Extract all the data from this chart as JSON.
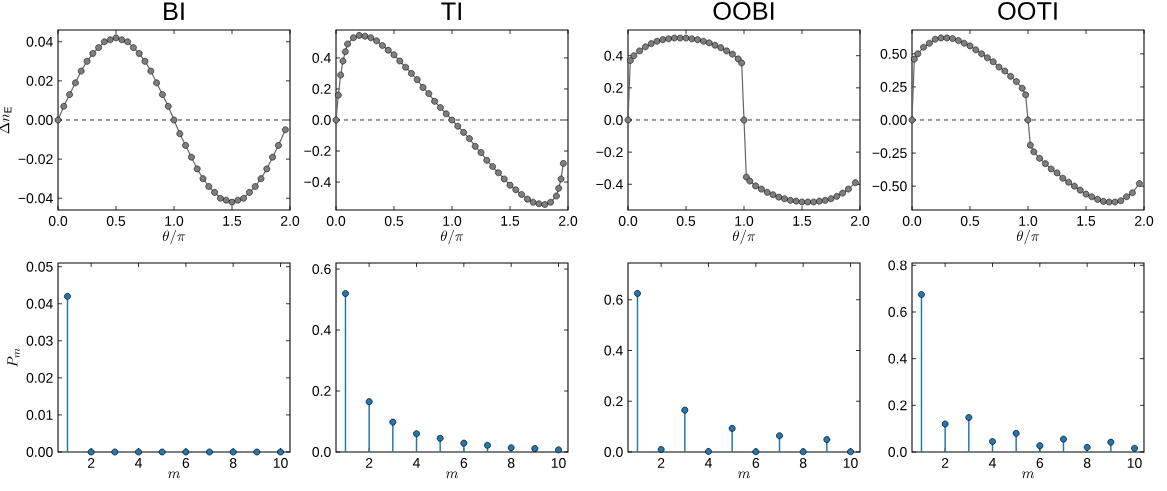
{
  "chart_data": [
    {
      "type": "line",
      "title": "BI",
      "xlabel": "\\theta/\\pi",
      "ylabel": "\\Delta n_\\mathrm{E}",
      "marker": "circle",
      "line_style": "solid",
      "x": [
        0,
        0.05,
        0.1,
        0.15,
        0.2,
        0.25,
        0.3,
        0.35,
        0.4,
        0.45,
        0.5,
        0.55,
        0.6,
        0.65,
        0.7,
        0.75,
        0.8,
        0.85,
        0.9,
        0.95,
        1.0,
        1.05,
        1.1,
        1.15,
        1.2,
        1.25,
        1.3,
        1.35,
        1.4,
        1.45,
        1.5,
        1.55,
        1.6,
        1.65,
        1.7,
        1.75,
        1.8,
        1.85,
        1.9,
        1.96
      ],
      "series": [
        {
          "color": "#666666",
          "values": [
            0,
            0.007,
            0.013,
            0.019,
            0.025,
            0.03,
            0.034,
            0.037,
            0.04,
            0.041,
            0.042,
            0.041,
            0.04,
            0.037,
            0.034,
            0.03,
            0.025,
            0.019,
            0.013,
            0.007,
            0,
            -0.007,
            -0.013,
            -0.019,
            -0.025,
            -0.03,
            -0.034,
            -0.037,
            -0.04,
            -0.041,
            -0.042,
            -0.041,
            -0.04,
            -0.037,
            -0.034,
            -0.03,
            -0.025,
            -0.019,
            -0.013,
            -0.005
          ]
        }
      ],
      "xlim": [
        0,
        2
      ],
      "xticks": [
        {
          "value": 0,
          "label": "0.0"
        },
        0.5,
        {
          "value": 1,
          "label": "1.0"
        },
        1.5,
        {
          "value": 2,
          "label": "2.0"
        }
      ],
      "ylim": [
        -0.046,
        0.046
      ],
      "yticks": [
        {
          "value": -0.04,
          "label": "−0.04"
        },
        {
          "value": -0.02,
          "label": "−0.02"
        },
        {
          "value": 0,
          "label": "0.00"
        },
        {
          "value": 0.02,
          "label": "0.02"
        },
        {
          "value": 0.04,
          "label": "0.04"
        }
      ],
      "ref_lines": [
        {
          "axis": "y",
          "value": 0,
          "color": "#000000",
          "line_style": "dashed"
        }
      ]
    },
    {
      "type": "line",
      "title": "TI",
      "xlabel": "\\theta/\\pi",
      "marker": "circle",
      "line_style": "solid",
      "x": [
        0,
        0.02,
        0.04,
        0.06,
        0.08,
        0.1,
        0.15,
        0.2,
        0.25,
        0.3,
        0.35,
        0.4,
        0.45,
        0.5,
        0.55,
        0.6,
        0.65,
        0.7,
        0.75,
        0.8,
        0.85,
        0.9,
        0.95,
        1.0,
        1.05,
        1.1,
        1.15,
        1.2,
        1.25,
        1.3,
        1.35,
        1.4,
        1.45,
        1.5,
        1.55,
        1.6,
        1.65,
        1.7,
        1.75,
        1.8,
        1.85,
        1.9,
        1.92,
        1.94,
        1.96
      ],
      "series": [
        {
          "color": "#666666",
          "values": [
            0,
            0.16,
            0.29,
            0.38,
            0.44,
            0.49,
            0.53,
            0.545,
            0.54,
            0.53,
            0.51,
            0.48,
            0.45,
            0.42,
            0.38,
            0.34,
            0.3,
            0.26,
            0.21,
            0.17,
            0.12,
            0.08,
            0.04,
            0,
            -0.04,
            -0.08,
            -0.12,
            -0.17,
            -0.21,
            -0.26,
            -0.3,
            -0.34,
            -0.38,
            -0.42,
            -0.45,
            -0.48,
            -0.51,
            -0.53,
            -0.54,
            -0.545,
            -0.53,
            -0.49,
            -0.44,
            -0.38,
            -0.28
          ]
        }
      ],
      "xlim": [
        0,
        2
      ],
      "xticks": [
        {
          "value": 0,
          "label": "0.0"
        },
        0.5,
        {
          "value": 1,
          "label": "1.0"
        },
        1.5,
        {
          "value": 2,
          "label": "2.0"
        }
      ],
      "ylim": [
        -0.58,
        0.58
      ],
      "yticks": [
        {
          "value": -0.4,
          "label": "−0.4"
        },
        {
          "value": -0.2,
          "label": "−0.2"
        },
        {
          "value": 0,
          "label": "0.0"
        },
        0.2,
        0.4
      ],
      "ref_lines": [
        {
          "axis": "y",
          "value": 0,
          "color": "#000000",
          "line_style": "dashed"
        }
      ]
    },
    {
      "type": "line",
      "title": "OOBI",
      "xlabel": "\\theta/\\pi",
      "marker": "circle",
      "line_style": "solid",
      "x": [
        0,
        0.02,
        0.05,
        0.1,
        0.15,
        0.2,
        0.25,
        0.3,
        0.35,
        0.4,
        0.45,
        0.5,
        0.55,
        0.6,
        0.65,
        0.7,
        0.75,
        0.8,
        0.85,
        0.9,
        0.95,
        0.98,
        1.0,
        1.02,
        1.05,
        1.1,
        1.15,
        1.2,
        1.25,
        1.3,
        1.35,
        1.4,
        1.45,
        1.5,
        1.55,
        1.6,
        1.65,
        1.7,
        1.75,
        1.8,
        1.85,
        1.9,
        1.96
      ],
      "series": [
        {
          "color": "#666666",
          "values": [
            0,
            0.37,
            0.4,
            0.43,
            0.455,
            0.475,
            0.49,
            0.5,
            0.505,
            0.51,
            0.51,
            0.51,
            0.505,
            0.5,
            0.49,
            0.48,
            0.465,
            0.45,
            0.43,
            0.41,
            0.38,
            0.355,
            0,
            -0.355,
            -0.38,
            -0.41,
            -0.43,
            -0.45,
            -0.465,
            -0.48,
            -0.49,
            -0.5,
            -0.505,
            -0.51,
            -0.51,
            -0.51,
            -0.505,
            -0.5,
            -0.49,
            -0.475,
            -0.455,
            -0.43,
            -0.39
          ]
        }
      ],
      "xlim": [
        0,
        2
      ],
      "xticks": [
        {
          "value": 0,
          "label": "0.0"
        },
        0.5,
        {
          "value": 1,
          "label": "1.0"
        },
        1.5,
        {
          "value": 2,
          "label": "2.0"
        }
      ],
      "ylim": [
        -0.56,
        0.56
      ],
      "yticks": [
        {
          "value": -0.4,
          "label": "−0.4"
        },
        {
          "value": -0.2,
          "label": "−0.2"
        },
        {
          "value": 0,
          "label": "0.0"
        },
        0.2,
        0.4
      ],
      "ref_lines": [
        {
          "axis": "y",
          "value": 0,
          "color": "#000000",
          "line_style": "dashed"
        }
      ]
    },
    {
      "type": "line",
      "title": "OOTI",
      "xlabel": "\\theta/\\pi",
      "marker": "circle",
      "line_style": "solid",
      "x": [
        0,
        0.02,
        0.05,
        0.1,
        0.15,
        0.2,
        0.25,
        0.3,
        0.35,
        0.4,
        0.45,
        0.5,
        0.55,
        0.6,
        0.65,
        0.7,
        0.75,
        0.8,
        0.85,
        0.9,
        0.95,
        0.98,
        1.0,
        1.02,
        1.05,
        1.1,
        1.15,
        1.2,
        1.25,
        1.3,
        1.35,
        1.4,
        1.45,
        1.5,
        1.55,
        1.6,
        1.65,
        1.7,
        1.75,
        1.8,
        1.85,
        1.9,
        1.96
      ],
      "series": [
        {
          "color": "#666666",
          "values": [
            0,
            0.46,
            0.5,
            0.55,
            0.58,
            0.61,
            0.62,
            0.62,
            0.615,
            0.6,
            0.58,
            0.56,
            0.53,
            0.5,
            0.47,
            0.44,
            0.4,
            0.37,
            0.33,
            0.29,
            0.24,
            0.19,
            0,
            -0.19,
            -0.24,
            -0.29,
            -0.33,
            -0.37,
            -0.4,
            -0.44,
            -0.47,
            -0.5,
            -0.53,
            -0.56,
            -0.58,
            -0.6,
            -0.615,
            -0.62,
            -0.62,
            -0.61,
            -0.58,
            -0.55,
            -0.48
          ]
        }
      ],
      "xlim": [
        0,
        2
      ],
      "xticks": [
        {
          "value": 0,
          "label": "0.0"
        },
        0.5,
        {
          "value": 1,
          "label": "1.0"
        },
        1.5,
        {
          "value": 2,
          "label": "2.0"
        }
      ],
      "ylim": [
        -0.68,
        0.68
      ],
      "yticks": [
        {
          "value": -0.5,
          "label": "−0.50"
        },
        {
          "value": -0.25,
          "label": "−0.25"
        },
        {
          "value": 0,
          "label": "0.00"
        },
        0.25,
        {
          "value": 0.5,
          "label": "0.50"
        }
      ],
      "ref_lines": [
        {
          "axis": "y",
          "value": 0,
          "color": "#000000",
          "line_style": "dashed"
        }
      ]
    },
    {
      "type": "lollipop",
      "xlabel": "m",
      "ylabel": "P_m",
      "marker": "circle",
      "x": [
        1,
        2,
        3,
        4,
        5,
        6,
        7,
        8,
        9,
        10
      ],
      "series": [
        {
          "color": "#1f77b4",
          "values": [
            0.042,
            0,
            0,
            0,
            0,
            0,
            0,
            0,
            0,
            0
          ]
        }
      ],
      "xlim": [
        0.6,
        10.4
      ],
      "xticks": [
        2,
        4,
        6,
        8,
        10
      ],
      "ylim": [
        0,
        0.051
      ],
      "yticks": [
        {
          "value": 0,
          "label": "0.00"
        },
        {
          "value": 0.01,
          "label": "0.01"
        },
        {
          "value": 0.02,
          "label": "0.02"
        },
        {
          "value": 0.03,
          "label": "0.03"
        },
        {
          "value": 0.04,
          "label": "0.04"
        },
        {
          "value": 0.05,
          "label": "0.05"
        }
      ]
    },
    {
      "type": "lollipop",
      "xlabel": "m",
      "marker": "circle",
      "x": [
        1,
        2,
        3,
        4,
        5,
        6,
        7,
        8,
        9,
        10
      ],
      "series": [
        {
          "color": "#1f77b4",
          "values": [
            0.52,
            0.165,
            0.098,
            0.06,
            0.045,
            0.029,
            0.022,
            0.014,
            0.011,
            0.007
          ]
        }
      ],
      "xlim": [
        0.6,
        10.4
      ],
      "xticks": [
        2,
        4,
        6,
        8,
        10
      ],
      "ylim": [
        0,
        0.62
      ],
      "yticks": [
        {
          "value": 0,
          "label": "0.0"
        },
        0.2,
        0.4,
        0.6
      ]
    },
    {
      "type": "lollipop",
      "xlabel": "m",
      "marker": "circle",
      "x": [
        1,
        2,
        3,
        4,
        5,
        6,
        7,
        8,
        9,
        10
      ],
      "series": [
        {
          "color": "#1f77b4",
          "values": [
            0.625,
            0.01,
            0.165,
            0.002,
            0.093,
            0.001,
            0.064,
            0.001,
            0.049,
            0.001
          ]
        }
      ],
      "xlim": [
        0.6,
        10.4
      ],
      "xticks": [
        2,
        4,
        6,
        8,
        10
      ],
      "ylim": [
        0,
        0.745
      ],
      "yticks": [
        {
          "value": 0,
          "label": "0.0"
        },
        0.2,
        0.4,
        0.6
      ]
    },
    {
      "type": "lollipop",
      "xlabel": "m",
      "marker": "circle",
      "x": [
        1,
        2,
        3,
        4,
        5,
        6,
        7,
        8,
        9,
        10
      ],
      "series": [
        {
          "color": "#1f77b4",
          "values": [
            0.675,
            0.12,
            0.148,
            0.045,
            0.08,
            0.027,
            0.055,
            0.02,
            0.042,
            0.016
          ]
        }
      ],
      "xlim": [
        0.6,
        10.4
      ],
      "xticks": [
        2,
        4,
        6,
        8,
        10
      ],
      "ylim": [
        0,
        0.81
      ],
      "yticks": [
        {
          "value": 0,
          "label": "0.0"
        },
        0.2,
        0.4,
        0.6,
        0.8
      ]
    }
  ]
}
